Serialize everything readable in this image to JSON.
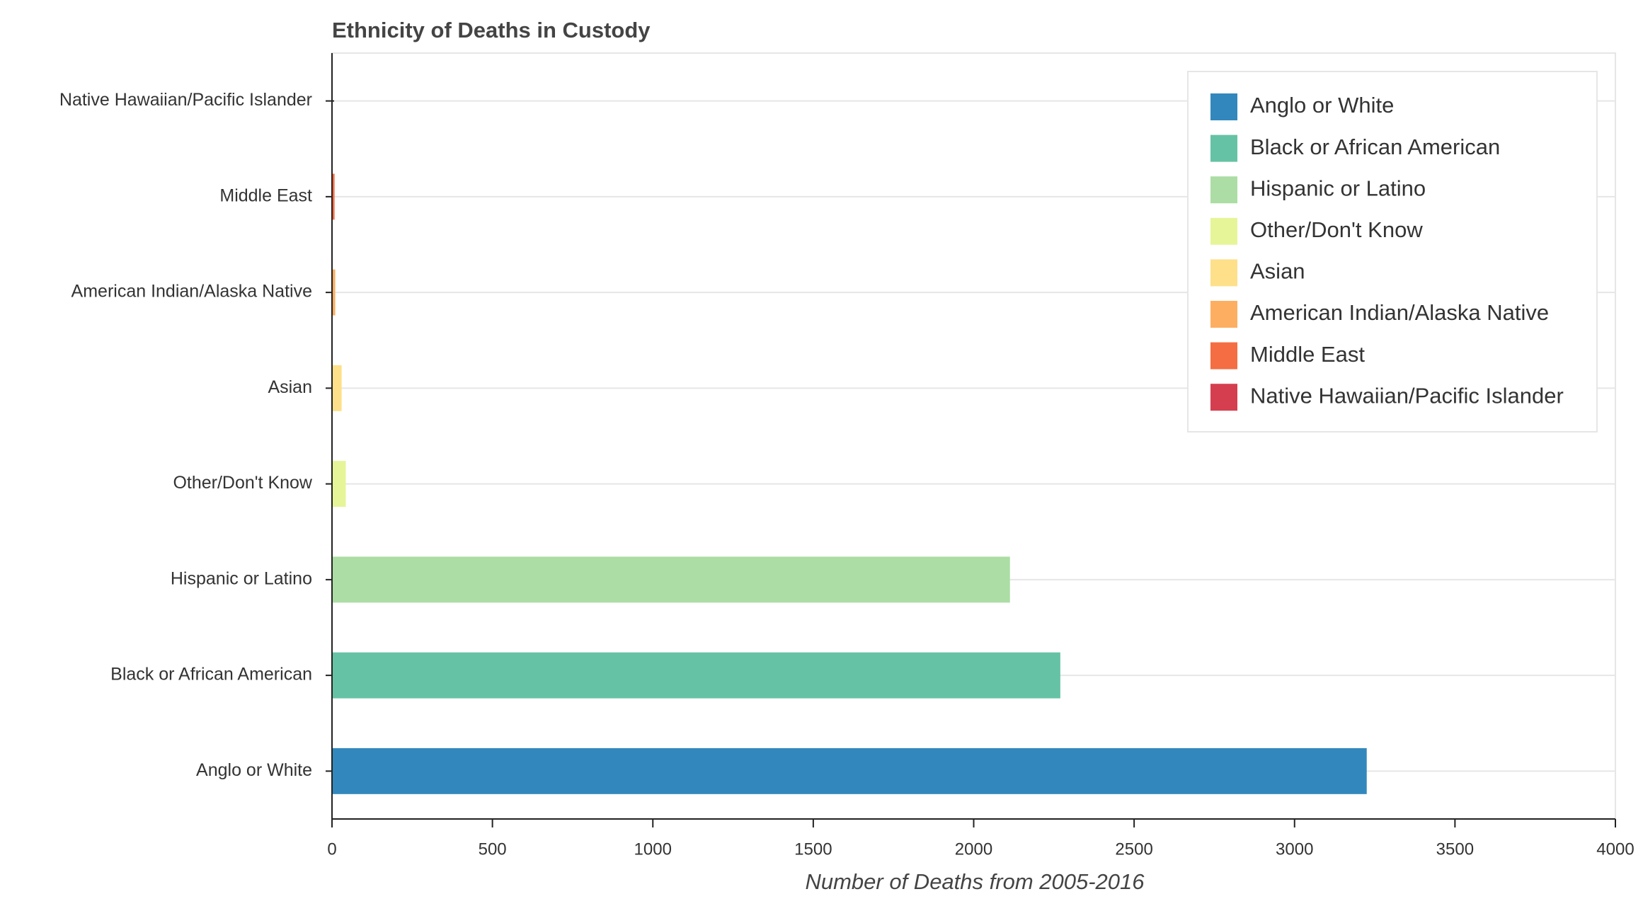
{
  "chart_data": {
    "type": "hbar",
    "title": "Ethnicity of Deaths in Custody",
    "x_label": "Number of Deaths from 2005-2016",
    "categories": [
      "Anglo or White",
      "Black or African American",
      "Hispanic or Latino",
      "Other/Don't Know",
      "Asian",
      "American Indian/Alaska Native",
      "Middle East",
      "Native Hawaiian/Pacific Islander"
    ],
    "values": [
      3225,
      2270,
      2113,
      43,
      30,
      10,
      8,
      1
    ],
    "colors": [
      "#3288bd",
      "#66c2a5",
      "#abdda4",
      "#e6f598",
      "#fee08b",
      "#fdae61",
      "#f46d43",
      "#d53e4f"
    ],
    "xlim": [
      0,
      4000
    ],
    "xticks": [
      0,
      500,
      1000,
      1500,
      2000,
      2500,
      3000,
      3500,
      4000
    ],
    "grid": true,
    "legend": "upper right"
  }
}
